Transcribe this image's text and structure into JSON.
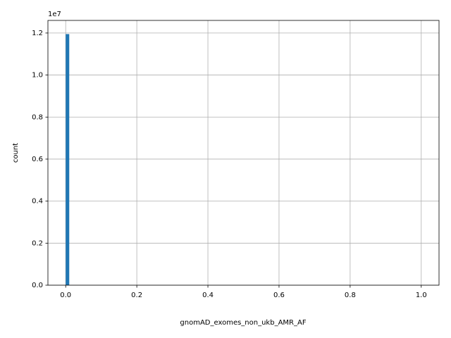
{
  "chart_data": {
    "type": "histogram",
    "xlabel": "gnomAD_exomes_non_ukb_AMR_AF",
    "ylabel": "count",
    "y_offset_label": "1e7",
    "color": "#1f77b4",
    "grid": true,
    "bins": [
      0,
      0.01,
      0.02,
      0.03,
      0.04,
      0.05,
      0.06,
      0.07,
      0.08,
      0.09,
      0.1,
      0.11,
      0.12,
      0.13,
      0.14,
      0.15,
      0.16,
      0.17,
      0.18,
      0.19,
      0.2,
      0.21,
      0.22,
      0.23,
      0.24,
      0.25,
      0.26,
      0.27,
      0.28,
      0.29,
      0.3,
      0.31,
      0.32,
      0.33,
      0.34,
      0.35,
      0.36,
      0.37,
      0.38,
      0.39,
      0.4,
      0.41,
      0.42,
      0.43,
      0.44,
      0.45,
      0.46,
      0.47,
      0.48,
      0.49,
      0.5,
      0.51,
      0.52,
      0.53,
      0.54,
      0.55,
      0.56,
      0.57,
      0.58,
      0.59,
      0.6,
      0.61,
      0.62,
      0.63,
      0.64,
      0.65,
      0.66,
      0.67,
      0.68,
      0.69,
      0.7,
      0.71,
      0.72,
      0.73,
      0.74,
      0.75,
      0.76,
      0.77,
      0.78,
      0.79,
      0.8,
      0.81,
      0.82,
      0.83,
      0.84,
      0.85,
      0.86,
      0.87,
      0.88,
      0.89,
      0.9,
      0.91,
      0.92,
      0.93,
      0.94,
      0.95,
      0.96,
      0.97,
      0.98,
      0.99,
      1
    ],
    "values": [
      11950000,
      0,
      0,
      0,
      0,
      0,
      0,
      0,
      0,
      0,
      0,
      0,
      0,
      0,
      0,
      0,
      0,
      0,
      0,
      0,
      0,
      0,
      0,
      0,
      0,
      0,
      0,
      0,
      0,
      0,
      0,
      0,
      0,
      0,
      0,
      0,
      0,
      0,
      0,
      0,
      0,
      0,
      0,
      0,
      0,
      0,
      0,
      0,
      0,
      0,
      0,
      0,
      0,
      0,
      0,
      0,
      0,
      0,
      0,
      0,
      0,
      0,
      0,
      0,
      0,
      0,
      0,
      0,
      0,
      0,
      0,
      0,
      0,
      0,
      0,
      0,
      0,
      0,
      0,
      0,
      0,
      0,
      0,
      0,
      0,
      0,
      0,
      0,
      0,
      0,
      0,
      0,
      0,
      0,
      0,
      0,
      0,
      0,
      0,
      0
    ],
    "xlim": [
      -0.05,
      1.05
    ],
    "xticks": [
      {
        "value": 0,
        "label": "0.0"
      },
      0.2,
      0.4,
      0.6,
      0.8,
      {
        "value": 1,
        "label": "1.0"
      }
    ],
    "ylim": [
      0,
      12600000
    ],
    "yticks": [
      {
        "value": 0,
        "label": "0.0"
      },
      {
        "value": 2000000,
        "label": "0.2"
      },
      {
        "value": 4000000,
        "label": "0.4"
      },
      {
        "value": 6000000,
        "label": "0.6"
      },
      {
        "value": 8000000,
        "label": "0.8"
      },
      {
        "value": 10000000,
        "label": "1.0"
      },
      {
        "value": 12000000,
        "label": "1.2"
      }
    ]
  }
}
